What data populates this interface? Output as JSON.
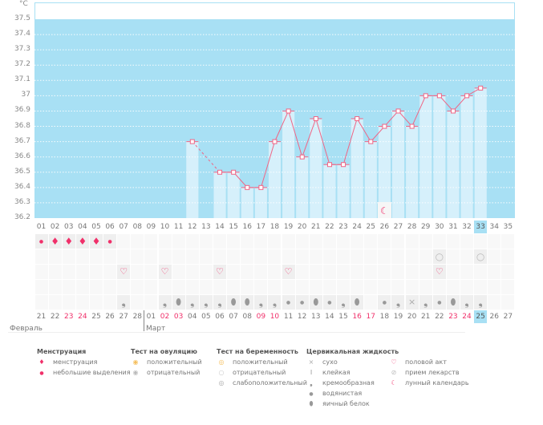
{
  "chart_data": {
    "type": "bar+line",
    "unit_label": "°C",
    "ylim": [
      36.2,
      37.5
    ],
    "yticks": [
      "37.5",
      "37.4",
      "37.3",
      "37.2",
      "37.1",
      "37",
      "36.9",
      "36.8",
      "36.7",
      "36.6",
      "36.5",
      "36.4",
      "36.3",
      "36.2"
    ],
    "cycle_days": [
      "01",
      "02",
      "03",
      "04",
      "05",
      "06",
      "07",
      "08",
      "09",
      "10",
      "11",
      "12",
      "13",
      "14",
      "15",
      "16",
      "17",
      "18",
      "19",
      "20",
      "21",
      "22",
      "23",
      "24",
      "25",
      "26",
      "27",
      "28",
      "29",
      "30",
      "31",
      "32",
      "33",
      "34",
      "35"
    ],
    "temperatures": [
      null,
      null,
      null,
      null,
      null,
      null,
      null,
      null,
      null,
      null,
      null,
      36.7,
      null,
      36.5,
      36.5,
      36.4,
      36.4,
      36.7,
      36.9,
      36.6,
      36.85,
      36.55,
      36.55,
      36.85,
      36.7,
      36.8,
      36.9,
      36.8,
      37.0,
      37.0,
      36.9,
      37.0,
      37.05,
      null,
      null
    ],
    "today_index": 32,
    "moon_day_index": 25,
    "dates": [
      "21",
      "22",
      "23",
      "24",
      "25",
      "26",
      "27",
      "28",
      "01",
      "02",
      "03",
      "04",
      "05",
      "06",
      "07",
      "08",
      "09",
      "10",
      "11",
      "12",
      "13",
      "14",
      "15",
      "16",
      "17",
      "18",
      "19",
      "20",
      "21",
      "22",
      "23",
      "24",
      "25",
      "26",
      "27"
    ],
    "weekend_indices": [
      2,
      3,
      9,
      10,
      16,
      17,
      23,
      24,
      30,
      31
    ],
    "months": [
      "Февраль",
      "Март"
    ],
    "rows": {
      "menstruation": {
        "0": "light",
        "1": "heavy",
        "2": "heavy",
        "3": "heavy",
        "4": "heavy",
        "5": "light"
      },
      "pregnancy_test": {
        "29": "negative",
        "32": "negative"
      },
      "intercourse": {
        "6": "heart",
        "9": "heart",
        "13": "heart",
        "18": "heart",
        "29": "heart"
      },
      "cervical": {
        "6": "creamy",
        "9": "creamy",
        "10": "egg",
        "11": "creamy",
        "12": "creamy",
        "13": "creamy",
        "14": "egg",
        "15": "egg",
        "16": "creamy",
        "17": "creamy",
        "18": "watery",
        "19": "watery",
        "20": "egg",
        "21": "watery",
        "22": "creamy",
        "23": "egg",
        "25": "watery",
        "26": "creamy",
        "27": "dry",
        "28": "creamy",
        "29": "watery",
        "30": "egg",
        "31": "creamy",
        "32": "creamy"
      }
    }
  },
  "colors": {
    "plot": "#a8e0f4",
    "bar": "#d6f0fb",
    "line": "#f06585",
    "weekend": "#f0306a",
    "icon": "#999999"
  },
  "legend": {
    "menstruation": {
      "title": "Менструация",
      "items": [
        "менструация",
        "небольшие выделения"
      ]
    },
    "ovulation": {
      "title": "Тест на овуляцию",
      "items": [
        "положительный",
        "отрицательный"
      ]
    },
    "pregnancy": {
      "title": "Тест на беременность",
      "items": [
        "положительный",
        "отрицательный",
        "слабоположительный"
      ]
    },
    "cervical": {
      "title": "Цервикальная жидкость",
      "items": [
        "сухо",
        "клейкая",
        "кремообразная",
        "водянистая",
        "яичный белок"
      ]
    },
    "other": {
      "items": [
        "половой акт",
        "прием лекарств",
        "лунный календарь"
      ]
    }
  }
}
